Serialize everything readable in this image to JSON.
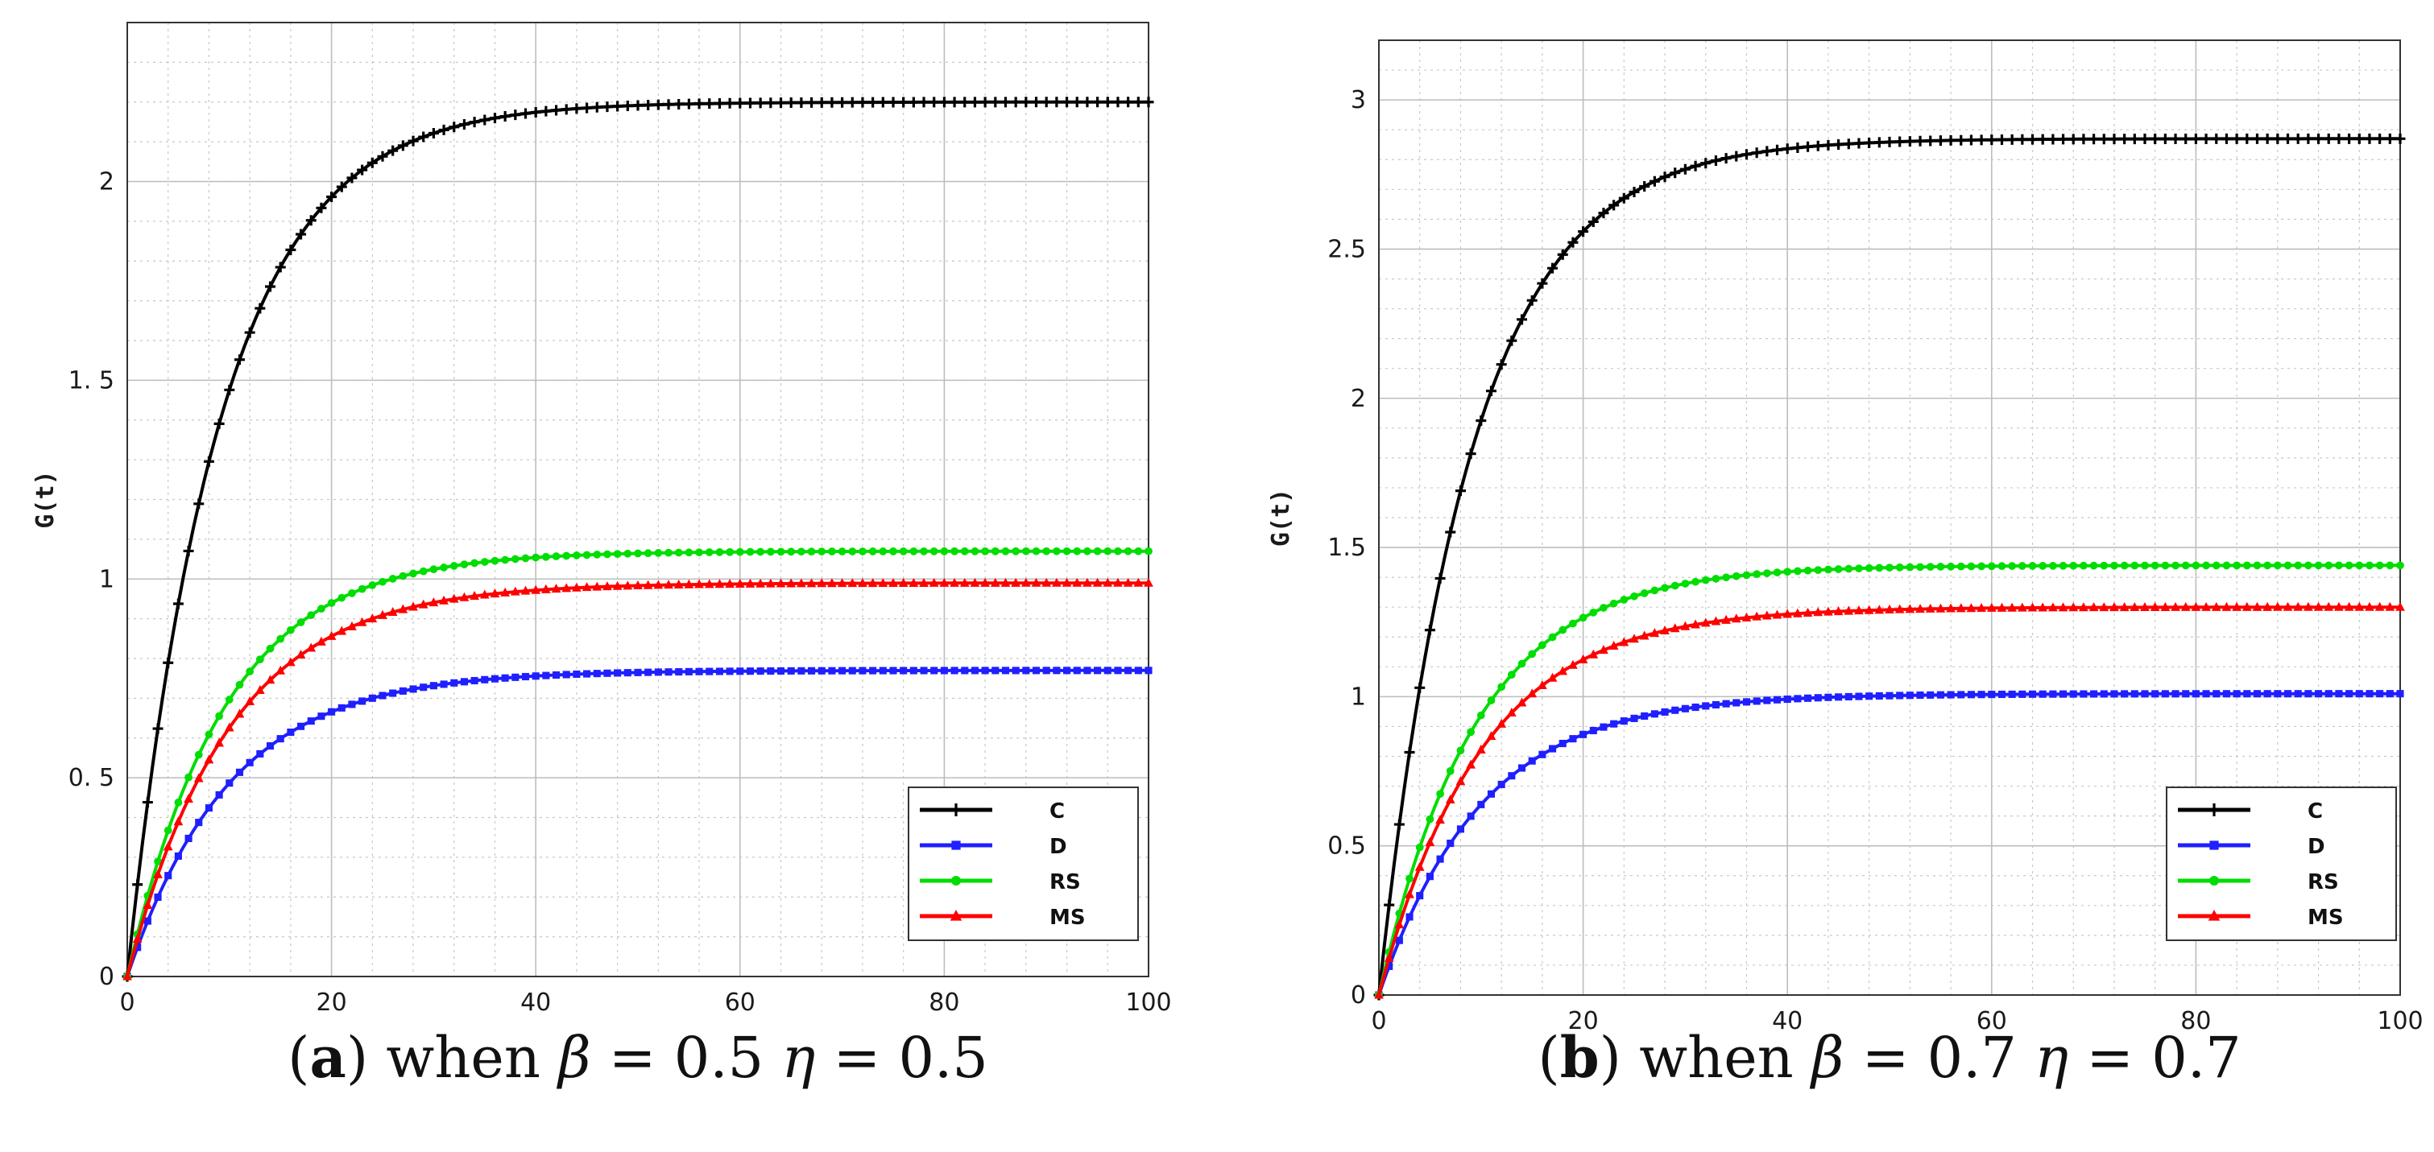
{
  "chart_data": [
    {
      "type": "line",
      "caption": {
        "letter": "a",
        "pre": ") when ",
        "sym1": "β",
        "mid": " = 0.5 ",
        "sym2": "η",
        "post": " = 0.5"
      },
      "ylabel": "G(t)",
      "xlim": [
        0,
        100
      ],
      "ylim": [
        0,
        2.4
      ],
      "xticks": [
        0,
        20,
        40,
        60,
        80,
        100
      ],
      "xtick_labels": [
        "0",
        "20",
        "40",
        "60",
        "80",
        "100"
      ],
      "yticks": [
        0,
        0.5,
        1,
        1.5,
        2
      ],
      "ytick_labels": [
        "0",
        "0. 5",
        "1",
        "1. 5",
        "2"
      ],
      "grid": true,
      "legend_position": "bottom-right",
      "series": [
        {
          "name": "C",
          "color": "#000000",
          "marker": "plus",
          "final": 2.2,
          "tau": 9.0
        },
        {
          "name": "D",
          "color": "#1f1fff",
          "marker": "square",
          "final": 0.77,
          "tau": 10.0
        },
        {
          "name": "RS",
          "color": "#00dd00",
          "marker": "circle",
          "final": 1.07,
          "tau": 9.5
        },
        {
          "name": "MS",
          "color": "#ff0000",
          "marker": "triangle",
          "final": 0.99,
          "tau": 10.0
        }
      ]
    },
    {
      "type": "line",
      "caption": {
        "letter": "b",
        "pre": ") when ",
        "sym1": "β",
        "mid": " = 0.7 ",
        "sym2": "η",
        "post": " = 0.7"
      },
      "ylabel": "G(t)",
      "xlim": [
        0,
        100
      ],
      "ylim": [
        0,
        3.2
      ],
      "xticks": [
        0,
        20,
        40,
        60,
        80,
        100
      ],
      "xtick_labels": [
        "0",
        "20",
        "40",
        "60",
        "80",
        "100"
      ],
      "yticks": [
        0,
        0.5,
        1,
        1.5,
        2,
        2.5,
        3
      ],
      "ytick_labels": [
        "0",
        "0.5",
        "1",
        "1.5",
        "2",
        "2.5",
        "3"
      ],
      "grid": true,
      "legend_position": "bottom-right",
      "series": [
        {
          "name": "C",
          "color": "#000000",
          "marker": "plus",
          "final": 2.87,
          "tau": 9.0
        },
        {
          "name": "D",
          "color": "#1f1fff",
          "marker": "square",
          "final": 1.01,
          "tau": 10.0
        },
        {
          "name": "RS",
          "color": "#00dd00",
          "marker": "circle",
          "final": 1.44,
          "tau": 9.5
        },
        {
          "name": "MS",
          "color": "#ff0000",
          "marker": "triangle",
          "final": 1.3,
          "tau": 10.0
        }
      ]
    }
  ]
}
